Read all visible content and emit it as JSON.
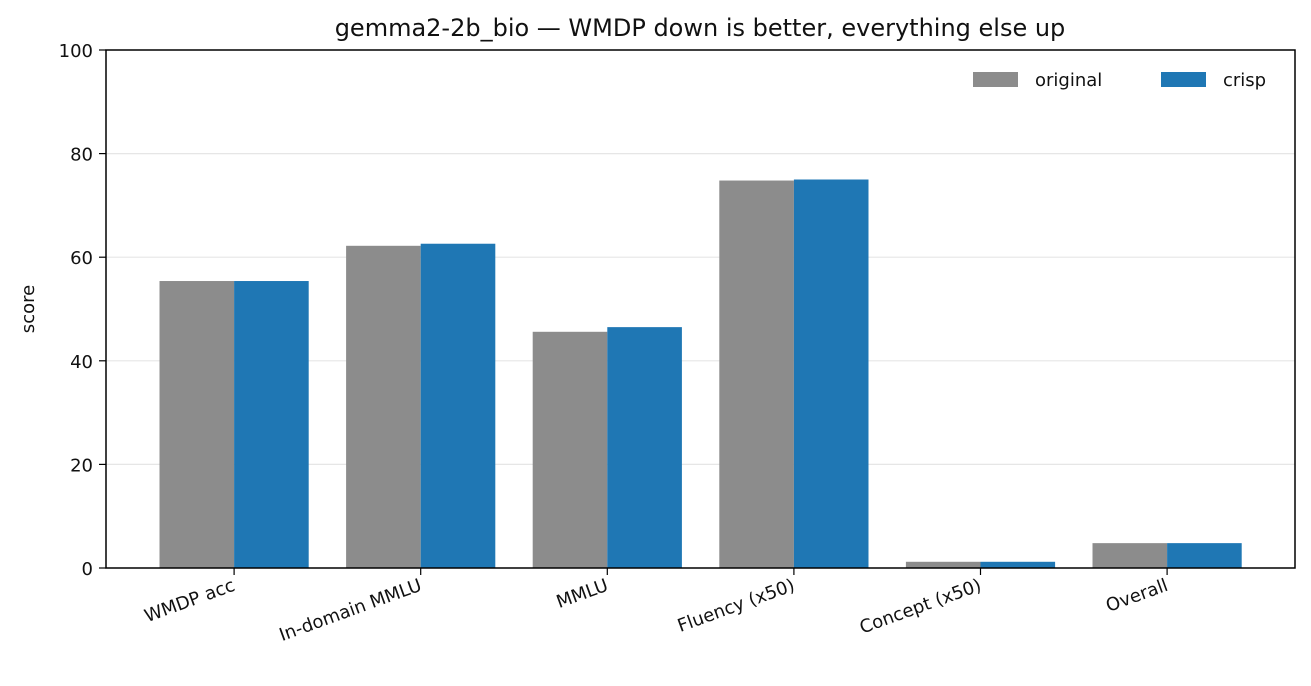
{
  "chart_data": {
    "type": "bar",
    "title": "gemma2-2b_bio — WMDP down is better, everything else up",
    "xlabel": "",
    "ylabel": "score",
    "ylim": [
      0,
      100
    ],
    "yticks": [
      0,
      20,
      40,
      60,
      80,
      100
    ],
    "grid": "horizontal",
    "legend_position": "top-right",
    "categories": [
      "WMDP acc",
      "In-domain MMLU",
      "MMLU",
      "Fluency (x50)",
      "Concept (x50)",
      "Overall"
    ],
    "series": [
      {
        "name": "original",
        "color": "#8c8c8c",
        "values": [
          55.4,
          62.2,
          45.6,
          74.8,
          1.2,
          4.8
        ]
      },
      {
        "name": "crisp",
        "color": "#1f77b4",
        "values": [
          55.4,
          62.6,
          46.5,
          75.0,
          1.2,
          4.8
        ]
      }
    ]
  }
}
